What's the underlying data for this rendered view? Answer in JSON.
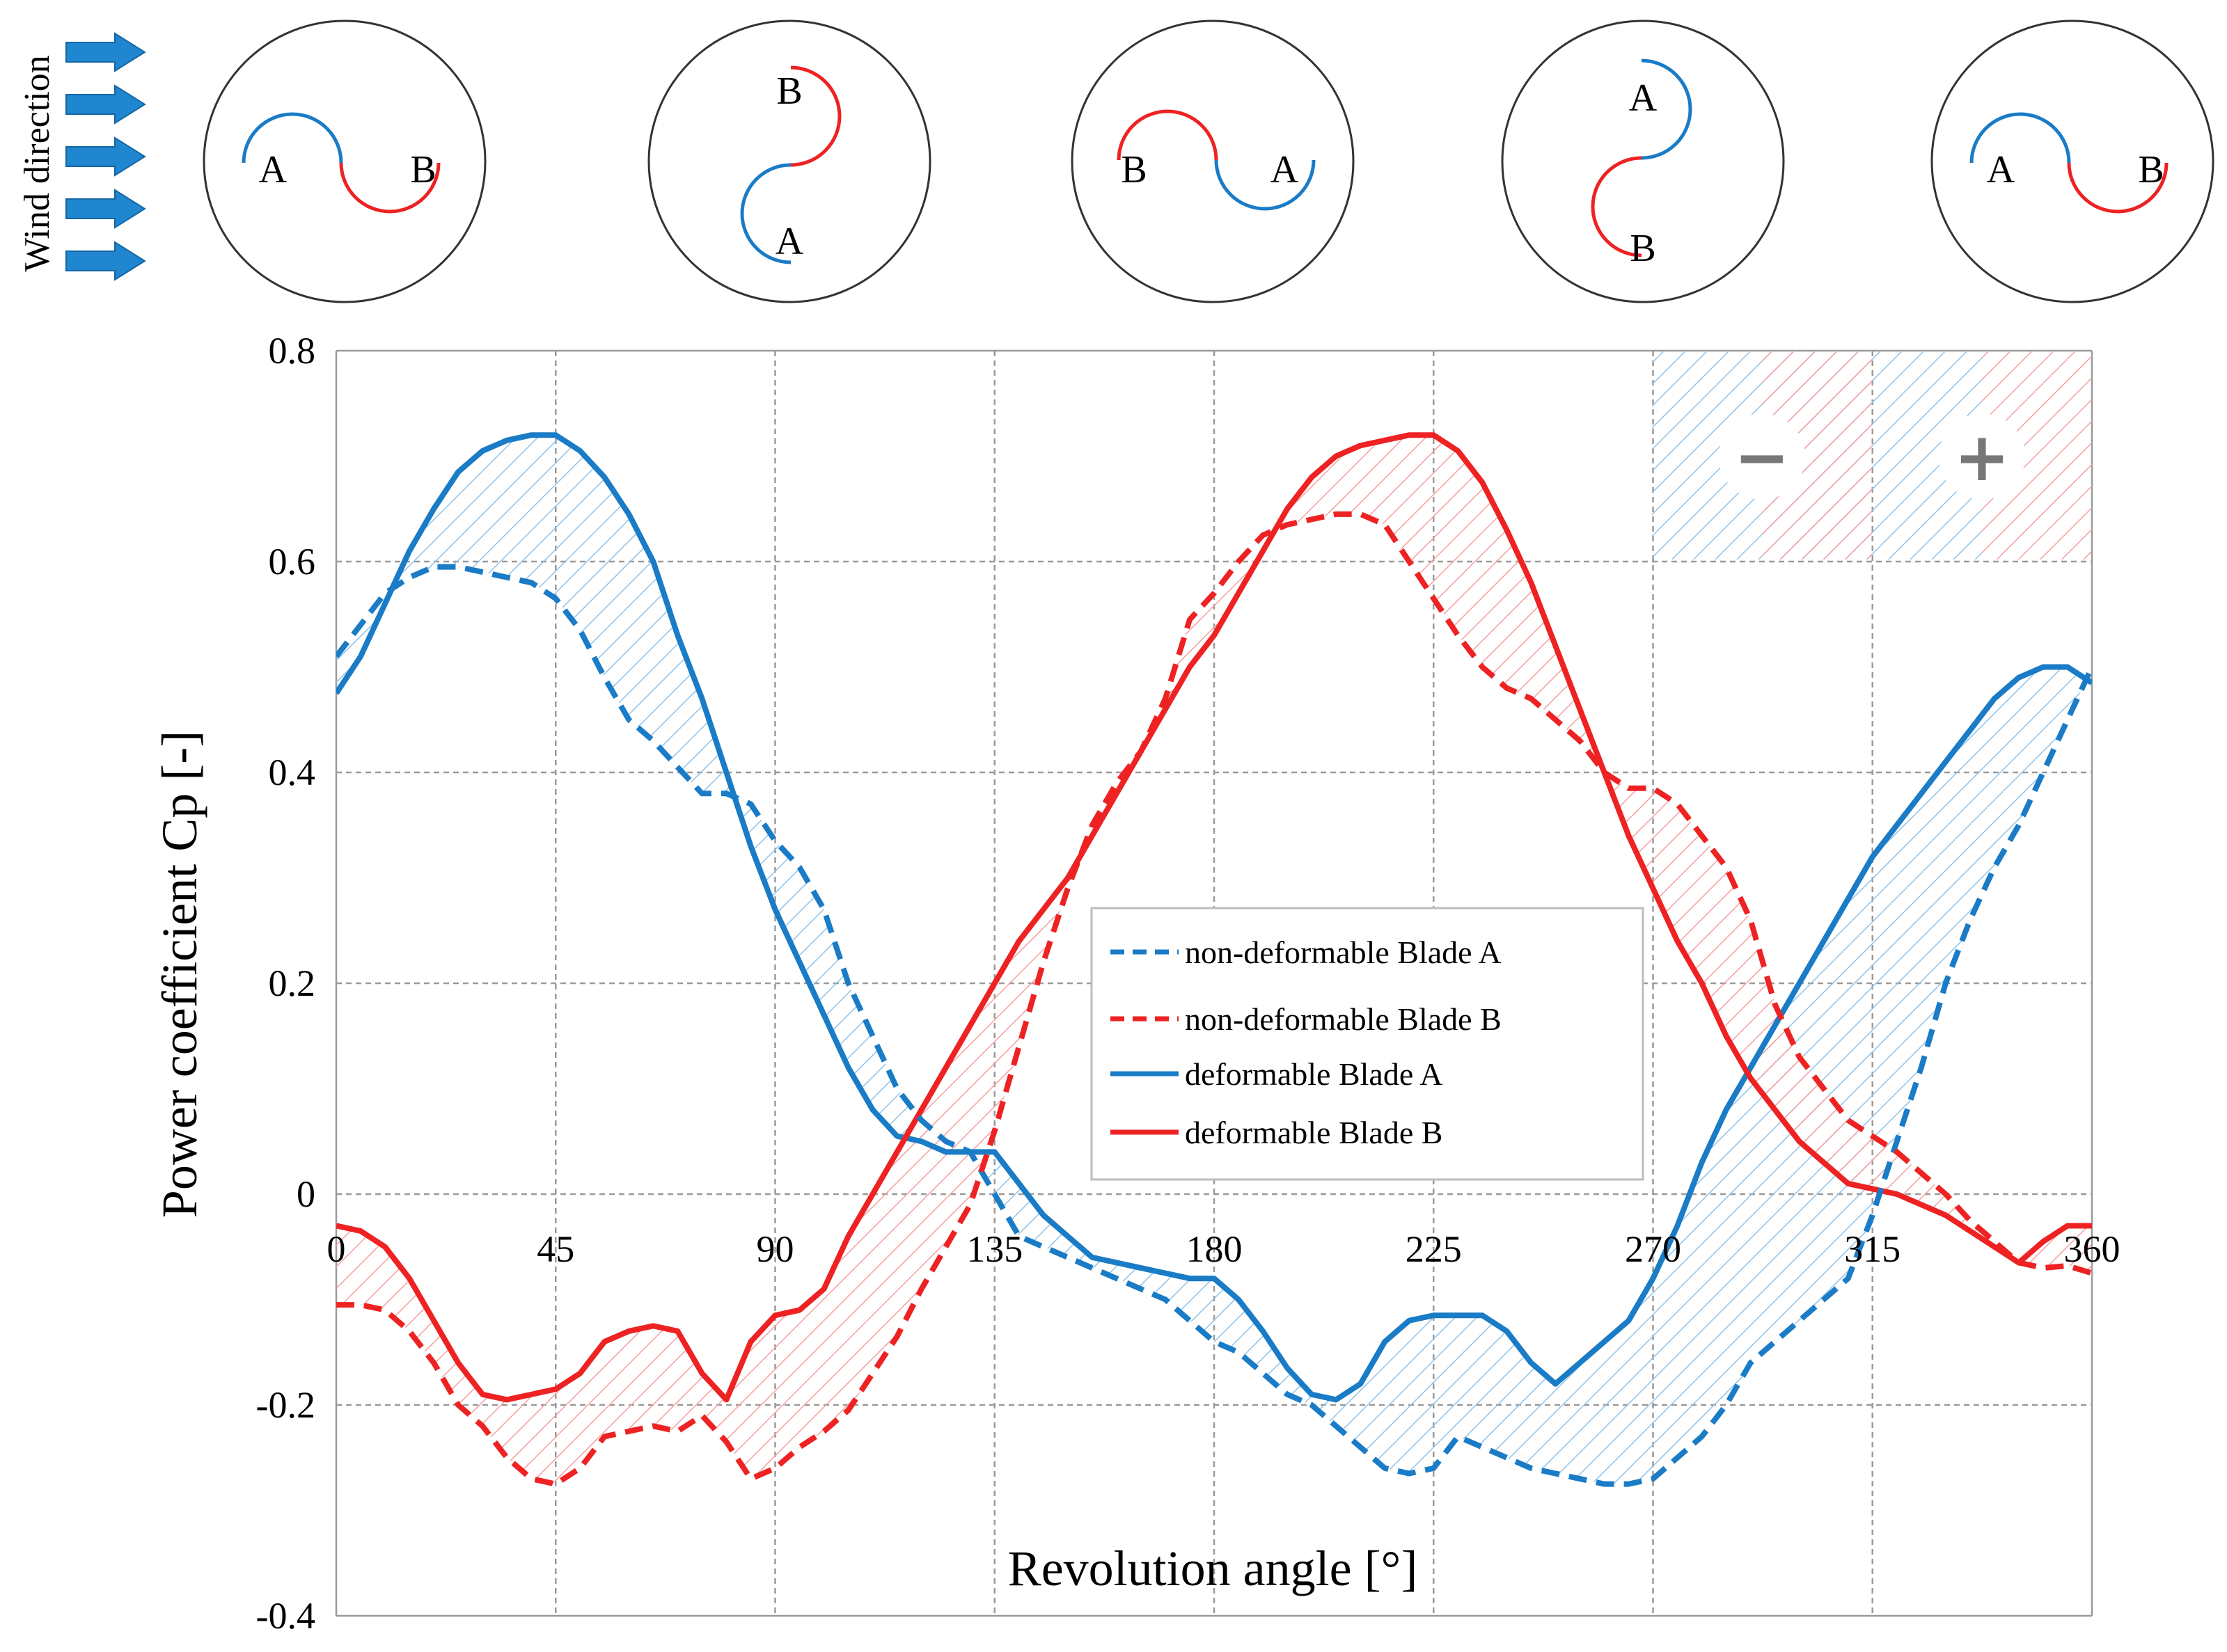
{
  "colors": {
    "blade_a": "#1a7bc6",
    "blade_b": "#ee2222",
    "hatch_a": "#8fc3ea",
    "hatch_b": "#f4a0a0",
    "grid": "#9a9a9a",
    "wind_arrow": "#1f86cf"
  },
  "wind": {
    "label": "Wind direction",
    "arrow_count": 5,
    "icon": "arrow-right-icon"
  },
  "rotors": [
    {
      "angle": 0,
      "label_a": "A",
      "label_b": "B"
    },
    {
      "angle": 90,
      "label_a": "A",
      "label_b": "B"
    },
    {
      "angle": 180,
      "label_a": "A",
      "label_b": "B"
    },
    {
      "angle": 270,
      "label_a": "A",
      "label_b": "B"
    },
    {
      "angle": 360,
      "label_a": "A",
      "label_b": "B"
    }
  ],
  "sign_legend": {
    "minus": "−",
    "plus": "+"
  },
  "chart_data": {
    "type": "line",
    "title": "",
    "xlabel": "Revolution angle [°]",
    "ylabel": "Power coefficient Cp [-]",
    "xlim": [
      0,
      360
    ],
    "ylim": [
      -0.4,
      0.8
    ],
    "grid": true,
    "xticks": [
      0,
      45,
      90,
      135,
      180,
      225,
      270,
      315,
      360
    ],
    "xtick_labels": [
      "0",
      "45",
      "90",
      "135",
      "180",
      "225",
      "270",
      "315",
      "360"
    ],
    "yticks": [
      -0.4,
      -0.2,
      0,
      0.2,
      0.4,
      0.6,
      0.8
    ],
    "ytick_labels": [
      "-0.4",
      "-0.2",
      "0",
      "0.2",
      "0.4",
      "0.6",
      "0.8"
    ],
    "legend_position": "center-right",
    "series": [
      {
        "name": "non-deformable Blade A",
        "style": "dashed",
        "color": "#1a7bc6",
        "x": [
          0,
          5,
          10,
          15,
          20,
          25,
          30,
          35,
          40,
          45,
          50,
          55,
          60,
          65,
          70,
          75,
          80,
          85,
          90,
          95,
          100,
          105,
          110,
          115,
          120,
          125,
          130,
          135,
          140,
          145,
          150,
          155,
          160,
          165,
          170,
          175,
          180,
          185,
          190,
          195,
          200,
          205,
          210,
          215,
          220,
          225,
          230,
          235,
          240,
          245,
          250,
          255,
          260,
          265,
          270,
          275,
          280,
          285,
          290,
          295,
          300,
          305,
          310,
          315,
          320,
          325,
          330,
          335,
          340,
          345,
          350,
          355,
          360
        ],
        "y": [
          0.51,
          0.54,
          0.57,
          0.585,
          0.595,
          0.595,
          0.59,
          0.585,
          0.58,
          0.565,
          0.535,
          0.49,
          0.45,
          0.43,
          0.405,
          0.38,
          0.38,
          0.37,
          0.335,
          0.31,
          0.27,
          0.2,
          0.15,
          0.1,
          0.07,
          0.05,
          0.04,
          0.0,
          -0.04,
          -0.05,
          -0.06,
          -0.07,
          -0.08,
          -0.09,
          -0.1,
          -0.12,
          -0.14,
          -0.15,
          -0.17,
          -0.19,
          -0.2,
          -0.22,
          -0.24,
          -0.26,
          -0.265,
          -0.26,
          -0.23,
          -0.24,
          -0.25,
          -0.26,
          -0.265,
          -0.27,
          -0.275,
          -0.275,
          -0.27,
          -0.25,
          -0.23,
          -0.2,
          -0.16,
          -0.14,
          -0.12,
          -0.1,
          -0.08,
          -0.02,
          0.05,
          0.12,
          0.2,
          0.26,
          0.31,
          0.35,
          0.4,
          0.45,
          0.5
        ]
      },
      {
        "name": "non-deformable Blade B",
        "style": "dashed",
        "color": "#ee2222",
        "x": [
          0,
          5,
          10,
          15,
          20,
          25,
          30,
          35,
          40,
          45,
          50,
          55,
          60,
          65,
          70,
          75,
          80,
          85,
          90,
          95,
          100,
          105,
          110,
          115,
          120,
          125,
          130,
          135,
          140,
          145,
          150,
          155,
          160,
          165,
          170,
          175,
          180,
          185,
          190,
          195,
          200,
          205,
          210,
          215,
          220,
          225,
          230,
          235,
          240,
          245,
          250,
          255,
          260,
          265,
          270,
          275,
          280,
          285,
          290,
          295,
          300,
          305,
          310,
          315,
          320,
          325,
          330,
          335,
          340,
          345,
          350,
          355,
          360
        ],
        "y": [
          -0.105,
          -0.105,
          -0.11,
          -0.13,
          -0.16,
          -0.2,
          -0.22,
          -0.25,
          -0.27,
          -0.275,
          -0.26,
          -0.23,
          -0.225,
          -0.22,
          -0.225,
          -0.21,
          -0.235,
          -0.27,
          -0.26,
          -0.24,
          -0.225,
          -0.205,
          -0.17,
          -0.135,
          -0.09,
          -0.05,
          -0.01,
          0.06,
          0.14,
          0.22,
          0.29,
          0.35,
          0.39,
          0.42,
          0.47,
          0.545,
          0.57,
          0.6,
          0.625,
          0.635,
          0.64,
          0.645,
          0.645,
          0.635,
          0.6,
          0.565,
          0.53,
          0.5,
          0.48,
          0.47,
          0.45,
          0.43,
          0.4,
          0.385,
          0.385,
          0.37,
          0.34,
          0.31,
          0.26,
          0.18,
          0.13,
          0.1,
          0.07,
          0.055,
          0.04,
          0.02,
          0.0,
          -0.025,
          -0.045,
          -0.065,
          -0.07,
          -0.068,
          -0.075
        ]
      },
      {
        "name": "deformable Blade A",
        "style": "solid",
        "color": "#1a7bc6",
        "x": [
          0,
          5,
          10,
          15,
          20,
          25,
          30,
          35,
          40,
          45,
          50,
          55,
          60,
          65,
          70,
          75,
          80,
          85,
          90,
          95,
          100,
          105,
          110,
          115,
          120,
          125,
          130,
          135,
          140,
          145,
          150,
          155,
          160,
          165,
          170,
          175,
          180,
          185,
          190,
          195,
          200,
          205,
          210,
          215,
          220,
          225,
          230,
          235,
          240,
          245,
          250,
          255,
          260,
          265,
          270,
          275,
          280,
          285,
          290,
          295,
          300,
          305,
          310,
          315,
          320,
          325,
          330,
          335,
          340,
          345,
          350,
          355,
          360
        ],
        "y": [
          0.475,
          0.51,
          0.56,
          0.61,
          0.65,
          0.685,
          0.705,
          0.715,
          0.72,
          0.72,
          0.705,
          0.68,
          0.645,
          0.6,
          0.53,
          0.47,
          0.4,
          0.33,
          0.27,
          0.22,
          0.17,
          0.12,
          0.08,
          0.055,
          0.05,
          0.04,
          0.04,
          0.04,
          0.01,
          -0.02,
          -0.04,
          -0.06,
          -0.065,
          -0.07,
          -0.075,
          -0.08,
          -0.08,
          -0.1,
          -0.13,
          -0.165,
          -0.19,
          -0.195,
          -0.18,
          -0.14,
          -0.12,
          -0.115,
          -0.115,
          -0.115,
          -0.13,
          -0.16,
          -0.18,
          -0.16,
          -0.14,
          -0.12,
          -0.08,
          -0.03,
          0.03,
          0.08,
          0.12,
          0.16,
          0.2,
          0.24,
          0.28,
          0.32,
          0.35,
          0.38,
          0.41,
          0.44,
          0.47,
          0.49,
          0.5,
          0.5,
          0.485
        ]
      },
      {
        "name": "deformable Blade B",
        "style": "solid",
        "color": "#ee2222",
        "x": [
          0,
          5,
          10,
          15,
          20,
          25,
          30,
          35,
          40,
          45,
          50,
          55,
          60,
          65,
          70,
          75,
          80,
          85,
          90,
          95,
          100,
          105,
          110,
          115,
          120,
          125,
          130,
          135,
          140,
          145,
          150,
          155,
          160,
          165,
          170,
          175,
          180,
          185,
          190,
          195,
          200,
          205,
          210,
          215,
          220,
          225,
          230,
          235,
          240,
          245,
          250,
          255,
          260,
          265,
          270,
          275,
          280,
          285,
          290,
          295,
          300,
          305,
          310,
          315,
          320,
          325,
          330,
          335,
          340,
          345,
          350,
          355,
          360
        ],
        "y": [
          -0.03,
          -0.035,
          -0.05,
          -0.08,
          -0.12,
          -0.16,
          -0.19,
          -0.195,
          -0.19,
          -0.185,
          -0.17,
          -0.14,
          -0.13,
          -0.125,
          -0.13,
          -0.17,
          -0.195,
          -0.14,
          -0.115,
          -0.11,
          -0.09,
          -0.04,
          0.0,
          0.04,
          0.08,
          0.12,
          0.16,
          0.2,
          0.24,
          0.27,
          0.3,
          0.34,
          0.38,
          0.42,
          0.46,
          0.5,
          0.53,
          0.57,
          0.61,
          0.65,
          0.68,
          0.7,
          0.71,
          0.715,
          0.72,
          0.72,
          0.705,
          0.675,
          0.63,
          0.58,
          0.52,
          0.46,
          0.4,
          0.34,
          0.29,
          0.24,
          0.2,
          0.15,
          0.11,
          0.08,
          0.05,
          0.03,
          0.01,
          0.005,
          0.0,
          -0.01,
          -0.02,
          -0.035,
          -0.05,
          -0.065,
          -0.045,
          -0.03,
          -0.03
        ]
      }
    ]
  }
}
